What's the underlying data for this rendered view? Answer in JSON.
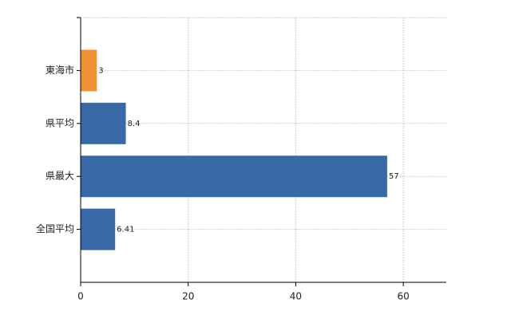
{
  "chart_data": {
    "type": "bar",
    "orientation": "horizontal",
    "categories": [
      "東海市",
      "県平均",
      "県最大",
      "全国平均"
    ],
    "values": [
      3,
      8.4,
      57,
      6.41
    ],
    "colors": [
      "#f0912f",
      "#386aa8",
      "#386aa8",
      "#386aa8"
    ],
    "xlim": [
      0,
      68
    ],
    "xticks": [
      0,
      20,
      40,
      60
    ],
    "grid": true
  }
}
